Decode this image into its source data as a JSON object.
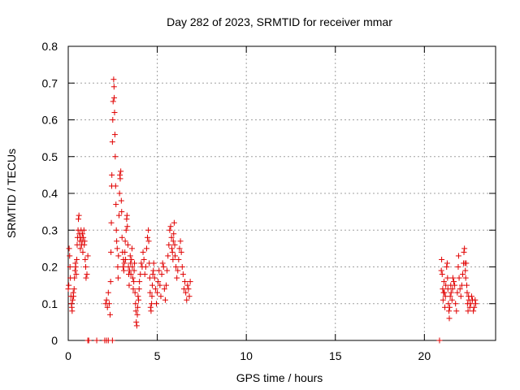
{
  "chart_data": {
    "type": "scatter",
    "title": "Day 282 of 2023, SRMTID for receiver mmar",
    "xlabel": "GPS time / hours",
    "ylabel": "SRMTID / TECUs",
    "xlim": [
      0,
      24
    ],
    "ylim": [
      0,
      0.8
    ],
    "xticks": [
      0,
      5,
      10,
      15,
      20
    ],
    "xtick_labels": [
      "0",
      "5",
      "10",
      "15",
      "20"
    ],
    "yticks": [
      0,
      0.1,
      0.2,
      0.3,
      0.4,
      0.5,
      0.6,
      0.7,
      0.8
    ],
    "ytick_labels": [
      "0",
      "0.1",
      "0.2",
      "0.3",
      "0.4",
      "0.5",
      "0.6",
      "0.7",
      "0.8"
    ],
    "grid": true,
    "marker": "+",
    "color": "#e00000",
    "series": [
      {
        "name": "SRMTID",
        "points": [
          [
            0.0,
            0.14
          ],
          [
            0.03,
            0.15
          ],
          [
            0.05,
            0.25
          ],
          [
            0.08,
            0.23
          ],
          [
            0.1,
            0.2
          ],
          [
            0.12,
            0.17
          ],
          [
            0.15,
            0.12
          ],
          [
            0.18,
            0.1
          ],
          [
            0.2,
            0.09
          ],
          [
            0.22,
            0.08
          ],
          [
            0.25,
            0.11
          ],
          [
            0.28,
            0.13
          ],
          [
            0.3,
            0.12
          ],
          [
            0.33,
            0.14
          ],
          [
            0.35,
            0.17
          ],
          [
            0.38,
            0.19
          ],
          [
            0.4,
            0.21
          ],
          [
            0.42,
            0.2
          ],
          [
            0.45,
            0.18
          ],
          [
            0.48,
            0.22
          ],
          [
            0.5,
            0.26
          ],
          [
            0.52,
            0.28
          ],
          [
            0.55,
            0.3
          ],
          [
            0.57,
            0.33
          ],
          [
            0.6,
            0.34
          ],
          [
            0.62,
            0.29
          ],
          [
            0.65,
            0.27
          ],
          [
            0.68,
            0.25
          ],
          [
            0.7,
            0.28
          ],
          [
            0.72,
            0.3
          ],
          [
            0.75,
            0.26
          ],
          [
            0.78,
            0.27
          ],
          [
            0.8,
            0.29
          ],
          [
            0.82,
            0.24
          ],
          [
            0.85,
            0.28
          ],
          [
            0.88,
            0.3
          ],
          [
            0.9,
            0.26
          ],
          [
            0.92,
            0.27
          ],
          [
            0.95,
            0.22
          ],
          [
            0.98,
            0.2
          ],
          [
            1.0,
            0.17
          ],
          [
            1.05,
            0.18
          ],
          [
            1.1,
            0.23
          ],
          [
            1.1,
            0.0
          ],
          [
            1.15,
            0.0
          ],
          [
            1.6,
            0.0
          ],
          [
            2.05,
            0.0
          ],
          [
            2.15,
            0.0
          ],
          [
            2.25,
            0.0
          ],
          [
            2.48,
            0.0
          ],
          [
            2.1,
            0.1
          ],
          [
            2.15,
            0.11
          ],
          [
            2.2,
            0.09
          ],
          [
            2.25,
            0.13
          ],
          [
            2.3,
            0.1
          ],
          [
            2.35,
            0.07
          ],
          [
            2.38,
            0.16
          ],
          [
            2.4,
            0.24
          ],
          [
            2.42,
            0.32
          ],
          [
            2.44,
            0.42
          ],
          [
            2.45,
            0.45
          ],
          [
            2.48,
            0.54
          ],
          [
            2.5,
            0.6
          ],
          [
            2.52,
            0.65
          ],
          [
            2.55,
            0.71
          ],
          [
            2.57,
            0.69
          ],
          [
            2.58,
            0.66
          ],
          [
            2.6,
            0.62
          ],
          [
            2.62,
            0.56
          ],
          [
            2.64,
            0.5
          ],
          [
            2.66,
            0.42
          ],
          [
            2.68,
            0.37
          ],
          [
            2.7,
            0.3
          ],
          [
            2.72,
            0.27
          ],
          [
            2.75,
            0.25
          ],
          [
            2.78,
            0.2
          ],
          [
            2.8,
            0.17
          ],
          [
            2.82,
            0.23
          ],
          [
            2.85,
            0.34
          ],
          [
            2.88,
            0.4
          ],
          [
            2.9,
            0.45
          ],
          [
            2.92,
            0.44
          ],
          [
            2.95,
            0.46
          ],
          [
            2.98,
            0.38
          ],
          [
            3.0,
            0.35
          ],
          [
            3.02,
            0.28
          ],
          [
            3.05,
            0.24
          ],
          [
            3.08,
            0.2
          ],
          [
            3.1,
            0.22
          ],
          [
            3.12,
            0.19
          ],
          [
            3.15,
            0.21
          ],
          [
            3.18,
            0.24
          ],
          [
            3.2,
            0.27
          ],
          [
            3.22,
            0.22
          ],
          [
            3.25,
            0.3
          ],
          [
            3.28,
            0.33
          ],
          [
            3.3,
            0.34
          ],
          [
            3.32,
            0.31
          ],
          [
            3.35,
            0.26
          ],
          [
            3.38,
            0.2
          ],
          [
            3.4,
            0.18
          ],
          [
            3.42,
            0.15
          ],
          [
            3.45,
            0.19
          ],
          [
            3.48,
            0.23
          ],
          [
            3.5,
            0.21
          ],
          [
            3.52,
            0.18
          ],
          [
            3.55,
            0.22
          ],
          [
            3.58,
            0.25
          ],
          [
            3.6,
            0.2
          ],
          [
            3.62,
            0.17
          ],
          [
            3.65,
            0.14
          ],
          [
            3.68,
            0.16
          ],
          [
            3.7,
            0.19
          ],
          [
            3.72,
            0.21
          ],
          [
            3.75,
            0.13
          ],
          [
            3.78,
            0.1
          ],
          [
            3.8,
            0.08
          ],
          [
            3.82,
            0.05
          ],
          [
            3.85,
            0.04
          ],
          [
            3.88,
            0.07
          ],
          [
            3.9,
            0.09
          ],
          [
            3.92,
            0.12
          ],
          [
            3.95,
            0.11
          ],
          [
            3.98,
            0.14
          ],
          [
            4.0,
            0.16
          ],
          [
            4.05,
            0.18
          ],
          [
            4.1,
            0.21
          ],
          [
            4.15,
            0.2
          ],
          [
            4.2,
            0.24
          ],
          [
            4.25,
            0.22
          ],
          [
            4.3,
            0.18
          ],
          [
            4.35,
            0.2
          ],
          [
            4.4,
            0.25
          ],
          [
            4.45,
            0.28
          ],
          [
            4.5,
            0.3
          ],
          [
            4.52,
            0.27
          ],
          [
            4.55,
            0.21
          ],
          [
            4.58,
            0.17
          ],
          [
            4.6,
            0.13
          ],
          [
            4.62,
            0.09
          ],
          [
            4.65,
            0.08
          ],
          [
            4.68,
            0.1
          ],
          [
            4.7,
            0.12
          ],
          [
            4.72,
            0.15
          ],
          [
            4.75,
            0.18
          ],
          [
            4.78,
            0.19
          ],
          [
            4.8,
            0.21
          ],
          [
            4.85,
            0.17
          ],
          [
            4.9,
            0.14
          ],
          [
            4.95,
            0.1
          ],
          [
            5.0,
            0.13
          ],
          [
            5.05,
            0.16
          ],
          [
            5.1,
            0.19
          ],
          [
            5.15,
            0.15
          ],
          [
            5.2,
            0.12
          ],
          [
            5.25,
            0.18
          ],
          [
            5.3,
            0.21
          ],
          [
            5.35,
            0.2
          ],
          [
            5.4,
            0.14
          ],
          [
            5.45,
            0.11
          ],
          [
            5.5,
            0.15
          ],
          [
            5.55,
            0.19
          ],
          [
            5.6,
            0.23
          ],
          [
            5.65,
            0.26
          ],
          [
            5.7,
            0.3
          ],
          [
            5.75,
            0.31
          ],
          [
            5.8,
            0.28
          ],
          [
            5.82,
            0.25
          ],
          [
            5.85,
            0.24
          ],
          [
            5.88,
            0.22
          ],
          [
            5.9,
            0.27
          ],
          [
            5.92,
            0.29
          ],
          [
            5.95,
            0.32
          ],
          [
            5.98,
            0.26
          ],
          [
            6.0,
            0.23
          ],
          [
            6.05,
            0.2
          ],
          [
            6.1,
            0.17
          ],
          [
            6.15,
            0.19
          ],
          [
            6.2,
            0.22
          ],
          [
            6.25,
            0.25
          ],
          [
            6.3,
            0.27
          ],
          [
            6.35,
            0.24
          ],
          [
            6.4,
            0.2
          ],
          [
            6.45,
            0.18
          ],
          [
            6.5,
            0.14
          ],
          [
            6.55,
            0.16
          ],
          [
            6.6,
            0.13
          ],
          [
            6.65,
            0.11
          ],
          [
            6.7,
            0.15
          ],
          [
            6.75,
            0.14
          ],
          [
            6.8,
            0.12
          ],
          [
            6.85,
            0.16
          ],
          [
            20.85,
            0.0
          ],
          [
            20.95,
            0.19
          ],
          [
            20.97,
            0.22
          ],
          [
            21.0,
            0.18
          ],
          [
            21.03,
            0.14
          ],
          [
            21.05,
            0.11
          ],
          [
            21.08,
            0.13
          ],
          [
            21.1,
            0.16
          ],
          [
            21.12,
            0.13
          ],
          [
            21.15,
            0.09
          ],
          [
            21.18,
            0.12
          ],
          [
            21.2,
            0.15
          ],
          [
            21.25,
            0.2
          ],
          [
            21.28,
            0.21
          ],
          [
            21.3,
            0.17
          ],
          [
            21.32,
            0.14
          ],
          [
            21.35,
            0.1
          ],
          [
            21.38,
            0.08
          ],
          [
            21.4,
            0.06
          ],
          [
            21.42,
            0.09
          ],
          [
            21.45,
            0.12
          ],
          [
            21.48,
            0.15
          ],
          [
            21.5,
            0.13
          ],
          [
            21.55,
            0.11
          ],
          [
            21.58,
            0.14
          ],
          [
            21.6,
            0.17
          ],
          [
            21.65,
            0.16
          ],
          [
            21.7,
            0.15
          ],
          [
            21.75,
            0.1
          ],
          [
            21.8,
            0.08
          ],
          [
            21.85,
            0.13
          ],
          [
            21.9,
            0.2
          ],
          [
            21.92,
            0.23
          ],
          [
            21.95,
            0.17
          ],
          [
            22.0,
            0.14
          ],
          [
            22.05,
            0.12
          ],
          [
            22.1,
            0.15
          ],
          [
            22.15,
            0.18
          ],
          [
            22.2,
            0.21
          ],
          [
            22.22,
            0.24
          ],
          [
            22.25,
            0.25
          ],
          [
            22.28,
            0.21
          ],
          [
            22.3,
            0.19
          ],
          [
            22.32,
            0.17
          ],
          [
            22.35,
            0.21
          ],
          [
            22.38,
            0.15
          ],
          [
            22.4,
            0.13
          ],
          [
            22.42,
            0.1
          ],
          [
            22.45,
            0.08
          ],
          [
            22.48,
            0.12
          ],
          [
            22.5,
            0.11
          ],
          [
            22.55,
            0.09
          ],
          [
            22.6,
            0.1
          ],
          [
            22.65,
            0.12
          ],
          [
            22.7,
            0.11
          ],
          [
            22.75,
            0.08
          ],
          [
            22.8,
            0.09
          ],
          [
            22.85,
            0.11
          ],
          [
            22.88,
            0.1
          ]
        ]
      }
    ]
  }
}
